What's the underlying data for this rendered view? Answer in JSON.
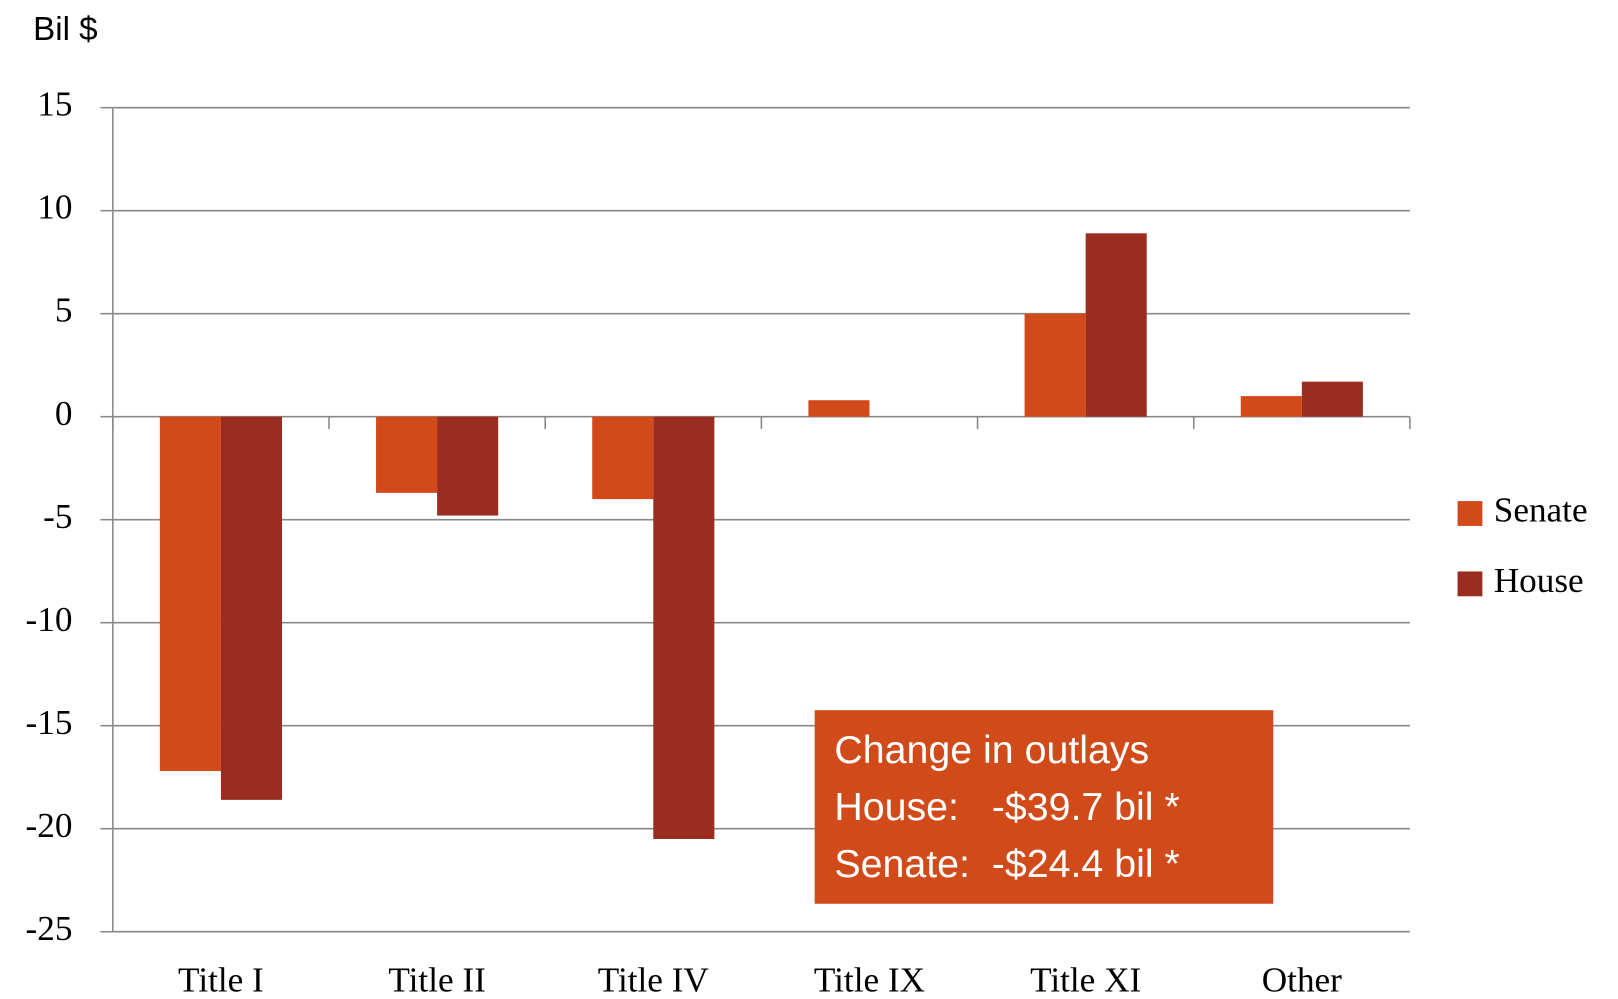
{
  "chart_data": {
    "type": "bar",
    "y_axis_label": "Bil $",
    "categories": [
      "Title I",
      "Title II",
      "Title IV",
      "Title IX",
      "Title XI",
      "Other"
    ],
    "series": [
      {
        "name": "Senate",
        "color": "#d24a1a",
        "values": [
          -17.2,
          -3.7,
          -4.0,
          0.8,
          5.0,
          1.0
        ]
      },
      {
        "name": "House",
        "color": "#9b2d20",
        "values": [
          -18.6,
          -4.8,
          -20.5,
          0,
          8.9,
          1.7
        ]
      }
    ],
    "ylim": [
      -25,
      15
    ],
    "yticks": [
      -25,
      -20,
      -15,
      -10,
      -5,
      0,
      5,
      10,
      15
    ],
    "grid": true,
    "legend": "right",
    "annotation": {
      "color": "#d04a1a",
      "lines": [
        "Change in outlays",
        "House:   -$39.7 bil *",
        "Senate:  -$24.4 bil *"
      ]
    }
  }
}
